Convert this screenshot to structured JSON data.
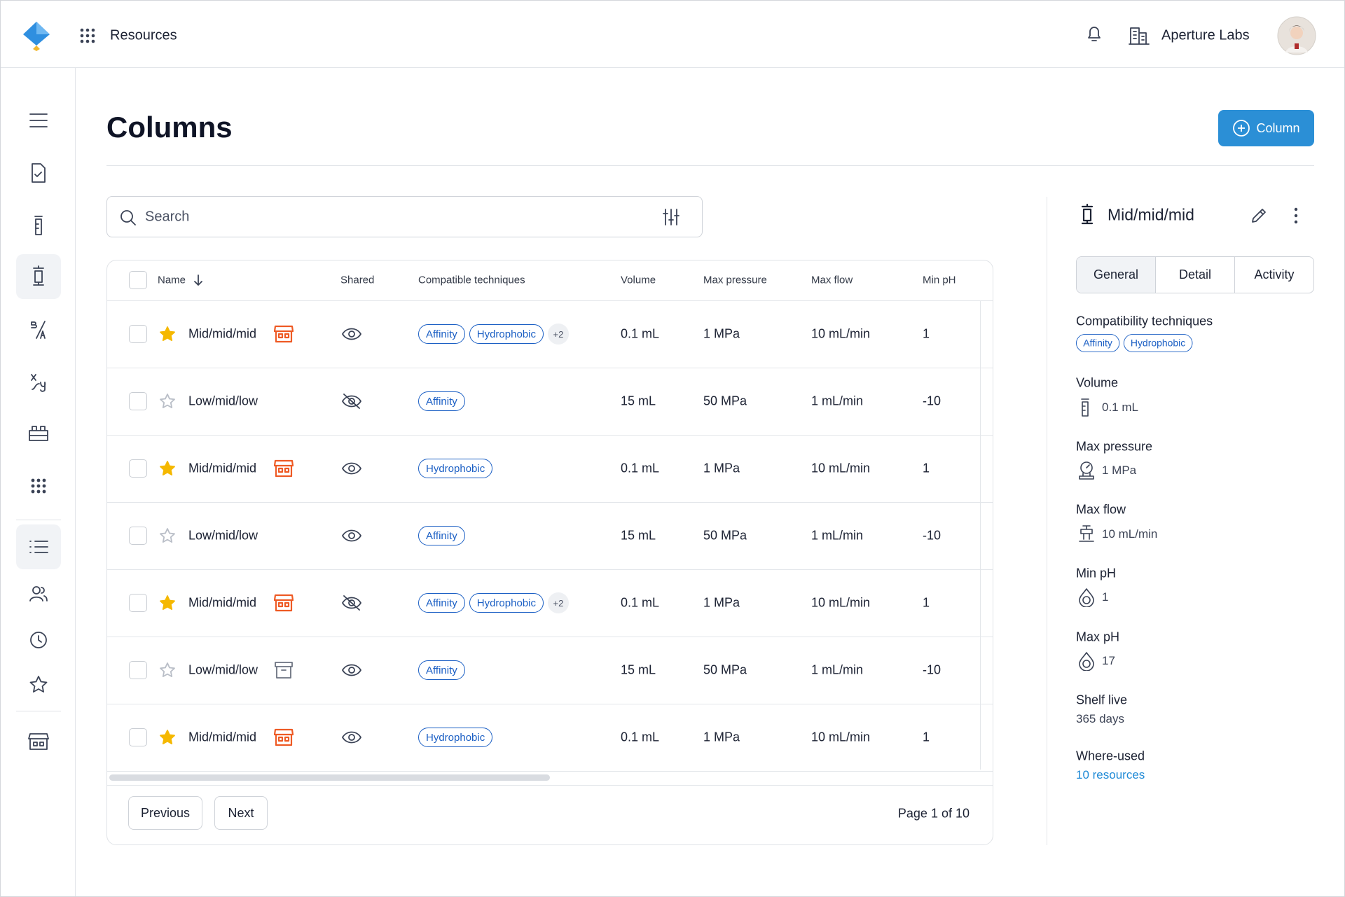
{
  "header": {
    "app": "Resources",
    "org": "Aperture Labs"
  },
  "page": {
    "title": "Columns",
    "add_button": "Column"
  },
  "search": {
    "placeholder": "Search"
  },
  "table": {
    "columns": [
      "Name",
      "Shared",
      "Compatible techniques",
      "Volume",
      "Max pressure",
      "Max flow",
      "Min pH"
    ],
    "rows": [
      {
        "name": "Mid/mid/mid",
        "starred": true,
        "badge": "store",
        "shared": true,
        "techniques": [
          "Affinity",
          "Hydrophobic"
        ],
        "more": "+2",
        "volume": "0.1 mL",
        "max_pressure": "1 MPa",
        "max_flow": "10 mL/min",
        "min_ph": "1"
      },
      {
        "name": "Low/mid/low",
        "starred": false,
        "badge": null,
        "shared": false,
        "techniques": [
          "Affinity"
        ],
        "more": null,
        "volume": "15 mL",
        "max_pressure": "50 MPa",
        "max_flow": "1 mL/min",
        "min_ph": "-10"
      },
      {
        "name": "Mid/mid/mid",
        "starred": true,
        "badge": "store",
        "shared": true,
        "techniques": [
          "Hydrophobic"
        ],
        "more": null,
        "volume": "0.1 mL",
        "max_pressure": "1 MPa",
        "max_flow": "10 mL/min",
        "min_ph": "1"
      },
      {
        "name": "Low/mid/low",
        "starred": false,
        "badge": null,
        "shared": true,
        "techniques": [
          "Affinity"
        ],
        "more": null,
        "volume": "15 mL",
        "max_pressure": "50 MPa",
        "max_flow": "1 mL/min",
        "min_ph": "-10"
      },
      {
        "name": "Mid/mid/mid",
        "starred": true,
        "badge": "store",
        "shared": false,
        "techniques": [
          "Affinity",
          "Hydrophobic"
        ],
        "more": "+2",
        "volume": "0.1 mL",
        "max_pressure": "1 MPa",
        "max_flow": "10 mL/min",
        "min_ph": "1"
      },
      {
        "name": "Low/mid/low",
        "starred": false,
        "badge": "archive",
        "shared": true,
        "techniques": [
          "Affinity"
        ],
        "more": null,
        "volume": "15 mL",
        "max_pressure": "50 MPa",
        "max_flow": "1 mL/min",
        "min_ph": "-10"
      },
      {
        "name": "Mid/mid/mid",
        "starred": true,
        "badge": "store",
        "shared": true,
        "techniques": [
          "Hydrophobic"
        ],
        "more": null,
        "volume": "0.1 mL",
        "max_pressure": "1 MPa",
        "max_flow": "10 mL/min",
        "min_ph": "1"
      }
    ]
  },
  "pagination": {
    "previous": "Previous",
    "next": "Next",
    "status": "Page 1 of 10"
  },
  "detail": {
    "title": "Mid/mid/mid",
    "tabs": [
      "General",
      "Detail",
      "Activity"
    ],
    "techniques_label": "Compatibility techniques",
    "techniques": [
      "Affinity",
      "Hydrophobic"
    ],
    "volume_label": "Volume",
    "volume": "0.1 mL",
    "pressure_label": "Max pressure",
    "pressure": "1 MPa",
    "flow_label": "Max flow",
    "flow": "10 mL/min",
    "min_ph_label": "Min pH",
    "min_ph": "1",
    "max_ph_label": "Max pH",
    "max_ph": "17",
    "shelf_label": "Shelf live",
    "shelf": "365 days",
    "where_label": "Where-used",
    "where": "10 resources"
  }
}
